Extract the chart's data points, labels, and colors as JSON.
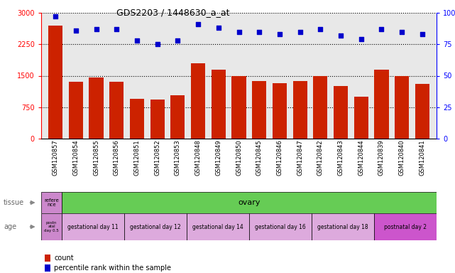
{
  "title": "GDS2203 / 1448630_a_at",
  "samples": [
    "GSM120857",
    "GSM120854",
    "GSM120855",
    "GSM120856",
    "GSM120851",
    "GSM120852",
    "GSM120853",
    "GSM120848",
    "GSM120849",
    "GSM120850",
    "GSM120845",
    "GSM120846",
    "GSM120847",
    "GSM120842",
    "GSM120843",
    "GSM120844",
    "GSM120839",
    "GSM120840",
    "GSM120841"
  ],
  "counts": [
    2700,
    1350,
    1450,
    1350,
    950,
    930,
    1030,
    1800,
    1650,
    1500,
    1380,
    1320,
    1380,
    1500,
    1250,
    1000,
    1650,
    1500,
    1300
  ],
  "percentiles": [
    97,
    86,
    87,
    87,
    78,
    75,
    78,
    91,
    88,
    85,
    85,
    83,
    85,
    87,
    82,
    79,
    87,
    85,
    83
  ],
  "bar_color": "#cc2200",
  "dot_color": "#0000cc",
  "ylim_left": [
    0,
    3000
  ],
  "ylim_right": [
    0,
    100
  ],
  "yticks_left": [
    0,
    750,
    1500,
    2250,
    3000
  ],
  "yticks_right": [
    0,
    25,
    50,
    75,
    100
  ],
  "bg_color": "#e8e8e8",
  "tissue_first_text": "refere\nnce",
  "tissue_first_color": "#cc88cc",
  "tissue_rest_text": "ovary",
  "tissue_rest_color": "#66cc55",
  "age_first_text": "postn\natal\nday 0.5",
  "age_first_color": "#cc88cc",
  "age_groups": [
    {
      "text": "gestational day 11",
      "count": 3,
      "color": "#ddaadd"
    },
    {
      "text": "gestational day 12",
      "count": 3,
      "color": "#ddaadd"
    },
    {
      "text": "gestational day 14",
      "count": 3,
      "color": "#ddaadd"
    },
    {
      "text": "gestational day 16",
      "count": 3,
      "color": "#ddaadd"
    },
    {
      "text": "gestational day 18",
      "count": 3,
      "color": "#ddaadd"
    },
    {
      "text": "postnatal day 2",
      "count": 3,
      "color": "#cc55cc"
    }
  ],
  "legend": [
    {
      "color": "#cc2200",
      "label": "count"
    },
    {
      "color": "#0000cc",
      "label": "percentile rank within the sample"
    }
  ]
}
